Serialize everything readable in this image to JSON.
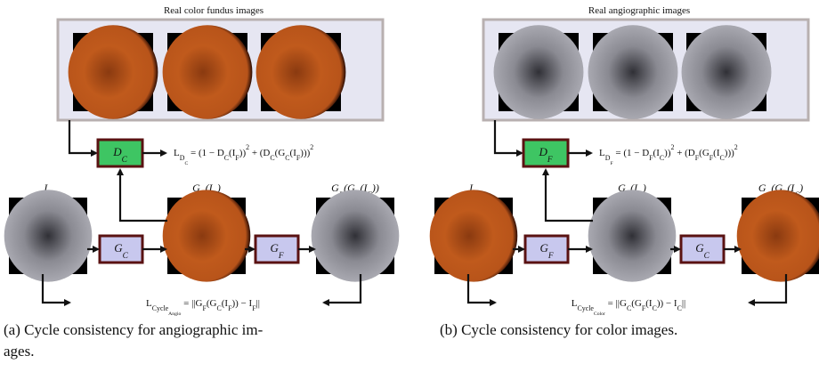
{
  "panels": [
    {
      "box_title": "Real color fundus images",
      "discriminator": "D_C",
      "disc_loss": "L_{D_C} = (1 − D_C(I_F))^2 + (D_C(G_C(I_F)))^2",
      "images": [
        "I_F",
        "G_C(I_F)",
        "G_F(G_C(I_F))"
      ],
      "generators": [
        "G_C",
        "G_F"
      ],
      "cycle_loss": "L_{Cycle_{Angio}} = ||G_F(G_C(I_F)) − I_F||",
      "caption": [
        "(a) Cycle consistency for angiographic im-",
        "ages."
      ]
    },
    {
      "box_title": "Real angiographic images",
      "discriminator": "D_F",
      "disc_loss": "L_{D_F} = (1 − D_F(I_C))^2 + (D_F(G_F(I_C)))^2",
      "images": [
        "I_C",
        "G_F(I_C)",
        "G_C(G_F(I_C)"
      ],
      "generators": [
        "G_F",
        "G_C"
      ],
      "cycle_loss": "L_{Cycle_{Color}} = ||G_C(G_F(I_C)) − I_C||",
      "caption": [
        "(b) Cycle consistency for color images."
      ]
    }
  ]
}
